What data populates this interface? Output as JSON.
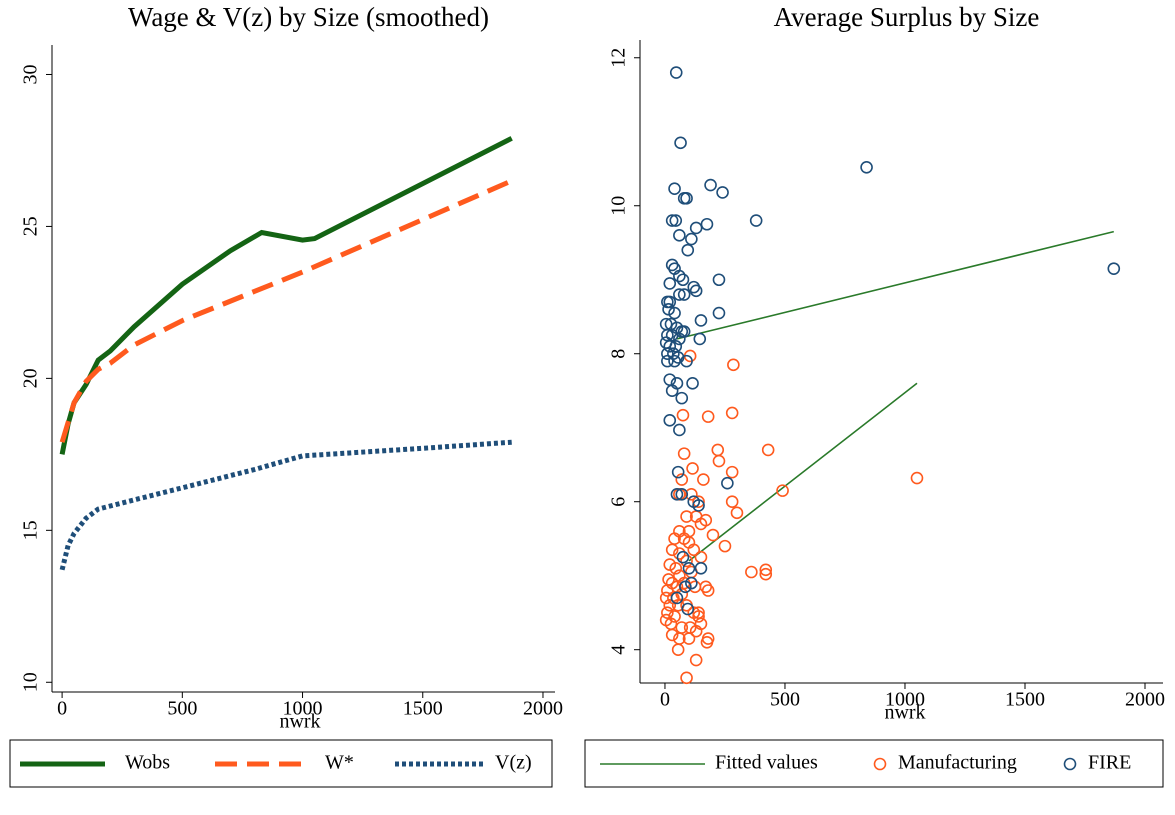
{
  "chart_data": [
    {
      "type": "line",
      "title": "Wage & V(z) by Size (smoothed)",
      "x_label": "nwrk",
      "xlim": [
        -42,
        2050
      ],
      "ylim": [
        9.68,
        30.97
      ],
      "xticks": [
        0,
        500,
        1000,
        1500,
        2000
      ],
      "yticks": [
        10,
        15,
        20,
        25,
        30
      ],
      "series": [
        {
          "name": "Wobs",
          "color": "#146414",
          "line_style": "solid",
          "x": [
            0,
            25,
            50,
            100,
            150,
            200,
            300,
            500,
            700,
            830,
            1000,
            1050,
            1870
          ],
          "values": [
            17.5,
            18.5,
            19.2,
            19.8,
            20.6,
            20.9,
            21.7,
            23.1,
            24.2,
            24.8,
            24.55,
            24.6,
            27.9
          ]
        },
        {
          "name": "W*",
          "color": "#ff5a1e",
          "line_style": "dash",
          "x": [
            0,
            50,
            100,
            150,
            200,
            300,
            500,
            1000,
            1870
          ],
          "values": [
            17.9,
            19.2,
            19.9,
            20.3,
            20.5,
            21.1,
            21.9,
            23.5,
            26.5
          ]
        },
        {
          "name": "V(z)",
          "color": "#1f4e79",
          "line_style": "dot",
          "x": [
            0,
            25,
            50,
            100,
            150,
            200,
            300,
            500,
            800,
            1000,
            1500,
            1870
          ],
          "values": [
            13.7,
            14.5,
            14.9,
            15.4,
            15.7,
            15.8,
            16.0,
            16.4,
            17.0,
            17.45,
            17.7,
            17.9
          ]
        }
      ]
    },
    {
      "type": "scatter",
      "title": "Average Surplus by Size",
      "x_label": "nwrk",
      "xlim": [
        -104,
        2075
      ],
      "ylim": [
        3.55,
        12.24
      ],
      "xticks": [
        0,
        500,
        1000,
        1500,
        2000
      ],
      "yticks": [
        4,
        6,
        8,
        10,
        12
      ],
      "series": [
        {
          "name": "Fitted values",
          "color": "#2a7a2a",
          "mark": "line",
          "x": [
            50,
            1870,
            null,
            100,
            1050
          ],
          "values": [
            8.2,
            9.65,
            null,
            5.2,
            7.6
          ]
        },
        {
          "name": "Manufacturing",
          "color": "#ff5a1e",
          "mark": "circle",
          "x": [
            105,
            285,
            180,
            75,
            280,
            430,
            220,
            225,
            80,
            280,
            115,
            160,
            70,
            490,
            1050,
            280,
            300,
            140,
            110,
            60,
            90,
            130,
            170,
            150,
            60,
            100,
            200,
            80,
            40,
            250,
            120,
            30,
            60,
            150,
            90,
            20,
            45,
            360,
            420,
            420,
            110,
            60,
            170,
            180,
            125,
            15,
            30,
            50,
            10,
            70,
            5,
            35,
            20,
            55,
            90,
            120,
            140,
            10,
            40,
            5,
            25,
            70,
            105,
            150,
            130,
            30,
            60,
            100,
            180,
            175,
            55,
            130,
            90,
            140,
            80,
            100
          ],
          "values": [
            7.97,
            7.85,
            7.15,
            7.17,
            7.2,
            6.7,
            6.7,
            6.55,
            6.65,
            6.4,
            6.45,
            6.3,
            6.3,
            6.15,
            6.32,
            6.0,
            5.85,
            6.0,
            6.1,
            6.1,
            5.8,
            5.8,
            5.75,
            5.7,
            5.6,
            5.6,
            5.55,
            5.5,
            5.5,
            5.4,
            5.35,
            5.35,
            5.3,
            5.25,
            5.2,
            5.15,
            5.1,
            5.05,
            5.08,
            5.02,
            5.05,
            5.0,
            4.85,
            4.8,
            4.85,
            4.95,
            4.9,
            4.85,
            4.8,
            4.75,
            4.7,
            4.7,
            4.6,
            4.6,
            4.6,
            4.5,
            4.5,
            4.5,
            4.45,
            4.4,
            4.35,
            4.3,
            4.3,
            4.35,
            4.25,
            4.2,
            4.15,
            4.15,
            4.15,
            4.1,
            4.0,
            3.86,
            3.62,
            4.45,
            4.9,
            5.45
          ]
        },
        {
          "name": "FIRE",
          "color": "#1f4e79",
          "mark": "circle",
          "x": [
            47,
            65,
            840,
            1870,
            190,
            240,
            80,
            90,
            40,
            45,
            30,
            380,
            175,
            130,
            110,
            60,
            95,
            225,
            120,
            130,
            225,
            30,
            40,
            60,
            75,
            20,
            10,
            20,
            60,
            80,
            15,
            40,
            150,
            5,
            25,
            50,
            70,
            80,
            10,
            30,
            60,
            5,
            20,
            45,
            145,
            10,
            35,
            55,
            90,
            10,
            40,
            115,
            20,
            50,
            30,
            70,
            20,
            60,
            260,
            55,
            70,
            120,
            140,
            50,
            75,
            100,
            150,
            85,
            110,
            95,
            50
          ],
          "values": [
            11.8,
            10.85,
            10.52,
            9.15,
            10.28,
            10.18,
            10.1,
            10.1,
            10.23,
            9.8,
            9.8,
            9.8,
            9.75,
            9.7,
            9.55,
            9.6,
            9.4,
            9.0,
            8.9,
            8.85,
            8.55,
            9.2,
            9.15,
            9.05,
            9.0,
            8.95,
            8.7,
            8.7,
            8.8,
            8.8,
            8.6,
            8.55,
            8.45,
            8.4,
            8.4,
            8.35,
            8.3,
            8.3,
            8.25,
            8.25,
            8.2,
            8.15,
            8.1,
            8.1,
            8.2,
            8.0,
            8.0,
            7.95,
            7.9,
            7.9,
            7.9,
            7.6,
            7.65,
            7.6,
            7.5,
            7.4,
            7.1,
            6.97,
            6.25,
            6.4,
            6.1,
            6.0,
            5.95,
            6.1,
            5.25,
            5.1,
            5.1,
            4.85,
            4.9,
            4.55,
            4.7
          ]
        }
      ]
    }
  ]
}
